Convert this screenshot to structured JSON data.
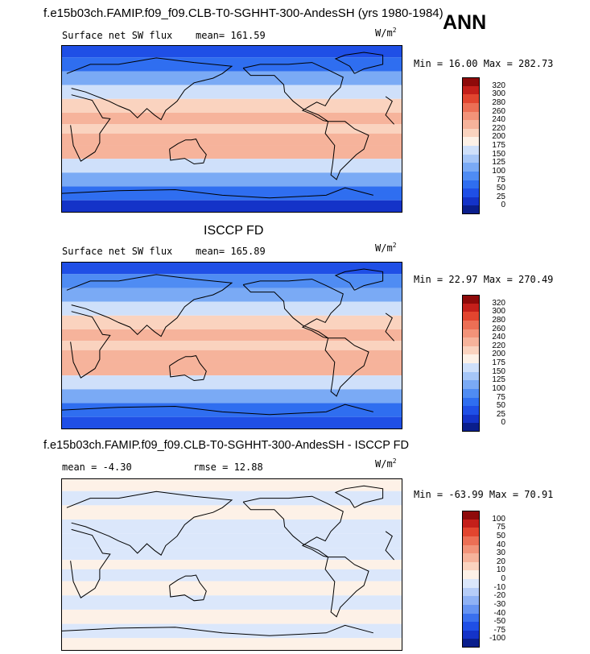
{
  "titles": {
    "main": "f.e15b03ch.FAMIP.f09_f09.CLB-T0-SGHHT-300-AndesSH (yrs 1980-1984)",
    "season": "ANN",
    "obs": "ISCCP FD",
    "diff": "f.e15b03ch.FAMIP.f09_f09.CLB-T0-SGHHT-300-AndesSH - ISCCP FD"
  },
  "chart_data": [
    {
      "type": "heatmap",
      "panel": "model",
      "variable_label": "Surface net SW flux",
      "mean_label": "mean= 161.59",
      "mean": 161.59,
      "units_base": "W/m",
      "units_exp": "2",
      "minmax_label": "Min =  16.00 Max = 282.73",
      "min": 16.0,
      "max": 282.73,
      "levels": [
        "0",
        "25",
        "50",
        "75",
        "100",
        "125",
        "150",
        "175",
        "200",
        "220",
        "240",
        "260",
        "280",
        "300",
        "320"
      ],
      "colors": [
        "#0a1e8c",
        "#1433c8",
        "#1f4fe6",
        "#2f6ef0",
        "#4f8cf3",
        "#7aaaf5",
        "#a6c6f7",
        "#cfe0fa",
        "#fdf1e7",
        "#fad3bf",
        "#f6b39b",
        "#f29379",
        "#ec6f55",
        "#e2452f",
        "#c41f1a",
        "#8e0a0a"
      ],
      "latitude_bands": [
        {
          "lat": 85,
          "value": 40
        },
        {
          "lat": 70,
          "value": 70
        },
        {
          "lat": 55,
          "value": 110
        },
        {
          "lat": 40,
          "value": 160
        },
        {
          "lat": 25,
          "value": 215
        },
        {
          "lat": 10,
          "value": 225
        },
        {
          "lat": 0,
          "value": 205
        },
        {
          "lat": -10,
          "value": 235
        },
        {
          "lat": -25,
          "value": 225
        },
        {
          "lat": -40,
          "value": 170
        },
        {
          "lat": -55,
          "value": 110
        },
        {
          "lat": -70,
          "value": 60
        },
        {
          "lat": -85,
          "value": 20
        }
      ]
    },
    {
      "type": "heatmap",
      "panel": "obs",
      "variable_label": "Surface net SW flux",
      "mean_label": "mean= 165.89",
      "mean": 165.89,
      "units_base": "W/m",
      "units_exp": "2",
      "minmax_label": "Min =  22.97 Max = 270.49",
      "min": 22.97,
      "max": 270.49,
      "levels": [
        "0",
        "25",
        "50",
        "75",
        "100",
        "125",
        "150",
        "175",
        "200",
        "220",
        "240",
        "260",
        "280",
        "300",
        "320"
      ],
      "colors": [
        "#0a1e8c",
        "#1433c8",
        "#1f4fe6",
        "#2f6ef0",
        "#4f8cf3",
        "#7aaaf5",
        "#a6c6f7",
        "#cfe0fa",
        "#fdf1e7",
        "#fad3bf",
        "#f6b39b",
        "#f29379",
        "#ec6f55",
        "#e2452f",
        "#c41f1a",
        "#8e0a0a"
      ],
      "latitude_bands": [
        {
          "lat": 85,
          "value": 45
        },
        {
          "lat": 70,
          "value": 75
        },
        {
          "lat": 55,
          "value": 115
        },
        {
          "lat": 40,
          "value": 165
        },
        {
          "lat": 25,
          "value": 215
        },
        {
          "lat": 10,
          "value": 225
        },
        {
          "lat": 0,
          "value": 215
        },
        {
          "lat": -10,
          "value": 235
        },
        {
          "lat": -25,
          "value": 220
        },
        {
          "lat": -40,
          "value": 165
        },
        {
          "lat": -55,
          "value": 110
        },
        {
          "lat": -70,
          "value": 65
        },
        {
          "lat": -85,
          "value": 25
        }
      ]
    },
    {
      "type": "heatmap",
      "panel": "difference",
      "variable_label": "mean =  -4.30",
      "mean": -4.3,
      "rmse_label": "rmse =  12.88",
      "rmse": 12.88,
      "units_base": "W/m",
      "units_exp": "2",
      "minmax_label": "Min = -63.99 Max =  70.91",
      "min": -63.99,
      "max": 70.91,
      "levels": [
        "-100",
        "-75",
        "-50",
        "-40",
        "-30",
        "-20",
        "-10",
        "0",
        "10",
        "20",
        "30",
        "40",
        "50",
        "75",
        "100"
      ],
      "colors": [
        "#0a1e8c",
        "#1433c8",
        "#1f4fe6",
        "#3a70ee",
        "#6694f2",
        "#8fb2f5",
        "#b6cdf8",
        "#dbe7fb",
        "#fdf1e7",
        "#fad3bf",
        "#f6b39b",
        "#f29379",
        "#ec6f55",
        "#e2452f",
        "#c41f1a",
        "#8e0a0a"
      ],
      "latitude_bands": [
        {
          "lat": 85,
          "value": 5
        },
        {
          "lat": 70,
          "value": -5
        },
        {
          "lat": 55,
          "value": 3
        },
        {
          "lat": 40,
          "value": -6
        },
        {
          "lat": 25,
          "value": -3
        },
        {
          "lat": 10,
          "value": -8
        },
        {
          "lat": 0,
          "value": 5
        },
        {
          "lat": -10,
          "value": -4
        },
        {
          "lat": -25,
          "value": 4
        },
        {
          "lat": -40,
          "value": -3
        },
        {
          "lat": -55,
          "value": 4
        },
        {
          "lat": -70,
          "value": -2
        },
        {
          "lat": -85,
          "value": 2
        }
      ]
    }
  ]
}
